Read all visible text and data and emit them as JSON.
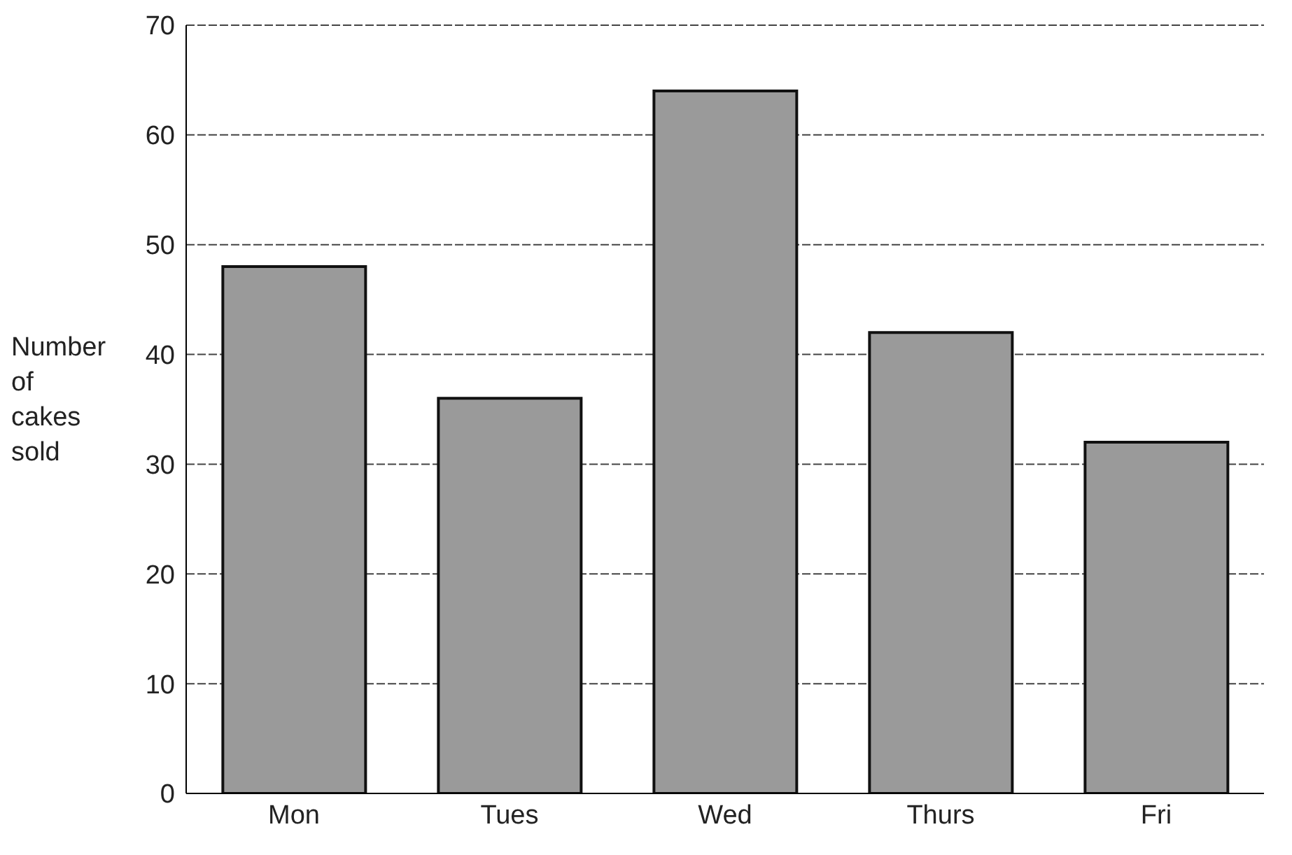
{
  "chart_data": {
    "type": "bar",
    "ylabel": "Number of cakes sold",
    "categories": [
      "Mon",
      "Tues",
      "Wed",
      "Thurs",
      "Fri"
    ],
    "values": [
      48,
      36,
      64,
      42,
      32
    ],
    "color": "#9a9a9a",
    "ylim": [
      0,
      70
    ],
    "yticks": [
      0,
      10,
      20,
      30,
      40,
      50,
      60,
      70
    ],
    "grid": "y"
  }
}
